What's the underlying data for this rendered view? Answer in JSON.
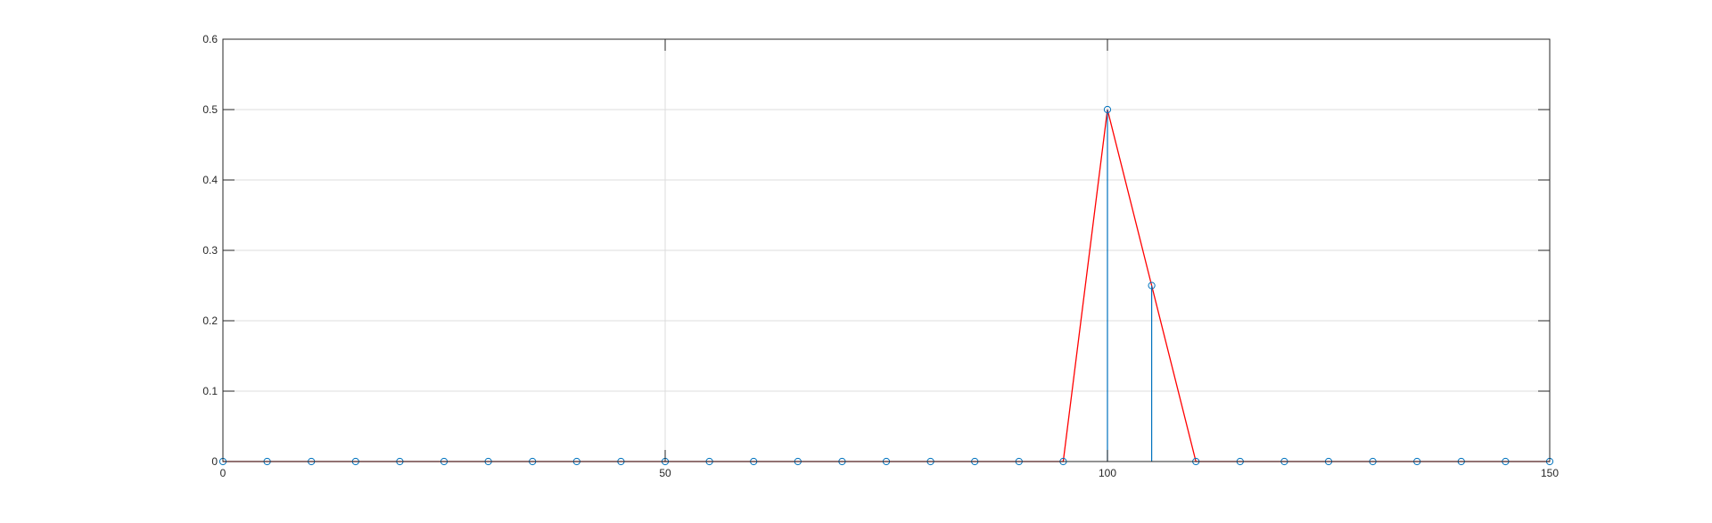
{
  "chart_data": {
    "type": "stem",
    "xlim": [
      0,
      150
    ],
    "ylim": [
      0,
      0.6
    ],
    "xticks": [
      0,
      50,
      100,
      150
    ],
    "xtick_labels": [
      "0",
      "50",
      "100",
      "150"
    ],
    "yticks": [
      0,
      0.1,
      0.2,
      0.3,
      0.4,
      0.5,
      0.6
    ],
    "ytick_labels": [
      "0",
      "0.1",
      "0.2",
      "0.3",
      "0.4",
      "0.5",
      "0.6"
    ],
    "grid": true,
    "colors": {
      "stem": "#0072BD",
      "line": "#FF0000",
      "grid": "#dcdcdc",
      "axes": "#262626"
    },
    "series": [
      {
        "style": "stem",
        "color": "#0072BD",
        "x": [
          0,
          5,
          10,
          15,
          20,
          25,
          30,
          35,
          40,
          45,
          50,
          55,
          60,
          65,
          70,
          75,
          80,
          85,
          90,
          95,
          100,
          105,
          110,
          115,
          120,
          125,
          130,
          135,
          140,
          145,
          150
        ],
        "y": [
          0,
          0,
          0,
          0,
          0,
          0,
          0,
          0,
          0,
          0,
          0,
          0,
          0,
          0,
          0,
          0,
          0,
          0,
          0,
          0,
          0.5,
          0.25,
          0,
          0,
          0,
          0,
          0,
          0,
          0,
          0,
          0
        ]
      },
      {
        "style": "line",
        "color": "#FF0000",
        "x": [
          0,
          95,
          100,
          105,
          110,
          150
        ],
        "y": [
          0,
          0,
          0.5,
          0.25,
          0,
          0
        ]
      }
    ]
  }
}
